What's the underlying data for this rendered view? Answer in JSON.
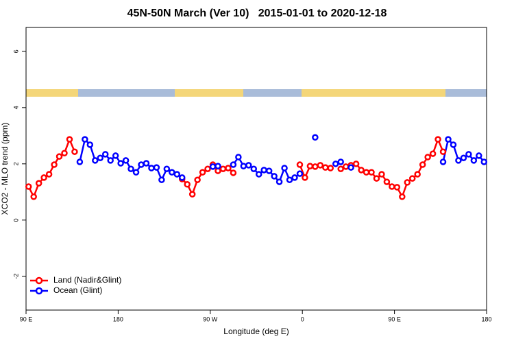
{
  "chart_data": {
    "type": "line",
    "title": "45N-50N March (Ver 10)   2015-01-01 to 2020-12-18",
    "x_label": "Longitude (deg E)",
    "y_label": "XCO2 - MLO trend (ppm)",
    "xlim": [
      90,
      540
    ],
    "ylim": [
      -3.2,
      6.85
    ],
    "xticks": [
      {
        "value": 90,
        "label": "90 E"
      },
      180,
      {
        "value": 270,
        "label": "90 W"
      },
      {
        "value": 360,
        "label": "0"
      },
      {
        "value": 450,
        "label": "90 E"
      },
      {
        "value": 540,
        "label": "180"
      }
    ],
    "yticks": [
      -2,
      0,
      2,
      4,
      6
    ],
    "legend": "bottomleft",
    "x": [
      92.5,
      97.5,
      102.5,
      107.5,
      112.5,
      117.5,
      122.5,
      127.5,
      132.5,
      137.5,
      142.5,
      147.5,
      152.5,
      157.5,
      162.5,
      167.5,
      172.5,
      177.5,
      182.5,
      187.5,
      192.5,
      197.5,
      202.5,
      207.5,
      212.5,
      217.5,
      222.5,
      227.5,
      232.5,
      237.5,
      242.5,
      247.5,
      252.5,
      257.5,
      262.5,
      267.5,
      272.5,
      277.5,
      282.5,
      287.5,
      292.5,
      297.5,
      302.5,
      307.5,
      312.5,
      317.5,
      322.5,
      327.5,
      332.5,
      337.5,
      342.5,
      347.5,
      352.5,
      357.5,
      362.5,
      367.5,
      372.5,
      377.5,
      382.5,
      387.5,
      392.5,
      397.5,
      402.5,
      407.5,
      412.5,
      417.5,
      422.5,
      427.5,
      432.5,
      437.5,
      442.5,
      447.5,
      452.5,
      457.5,
      462.5,
      467.5,
      472.5,
      477.5,
      482.5,
      487.5,
      492.5,
      497.5,
      502.5,
      507.5,
      512.5,
      517.5,
      522.5,
      527.5,
      532.5,
      537.5
    ],
    "series": [
      {
        "name": "Land (Nadir&Glint)",
        "color": "#ff0000",
        "values": [
          1.19,
          0.83,
          1.31,
          1.51,
          1.63,
          1.97,
          2.26,
          2.38,
          2.87,
          2.43,
          null,
          null,
          null,
          null,
          null,
          null,
          null,
          null,
          null,
          null,
          null,
          null,
          null,
          null,
          null,
          null,
          null,
          null,
          null,
          null,
          1.46,
          1.27,
          0.92,
          1.43,
          1.7,
          1.82,
          1.97,
          1.75,
          1.82,
          1.85,
          1.68,
          null,
          null,
          null,
          null,
          null,
          null,
          null,
          null,
          null,
          null,
          null,
          null,
          1.97,
          1.51,
          1.92,
          1.9,
          1.95,
          1.87,
          1.85,
          null,
          1.82,
          1.9,
          1.95,
          2.0,
          1.78,
          1.7,
          1.7,
          1.48,
          1.63,
          1.36,
          1.19,
          1.17,
          0.83,
          1.34,
          1.48,
          1.63,
          1.97,
          2.24,
          2.36,
          2.87,
          2.43,
          null,
          null,
          null,
          null,
          null,
          null,
          null,
          null
        ]
      },
      {
        "name": "Ocean (Glint)",
        "color": "#0000ff",
        "values": [
          null,
          null,
          null,
          null,
          null,
          null,
          null,
          null,
          null,
          null,
          2.07,
          2.87,
          2.68,
          2.12,
          2.21,
          2.34,
          2.12,
          2.29,
          2.02,
          2.12,
          1.82,
          1.7,
          1.97,
          2.02,
          1.85,
          1.87,
          1.43,
          1.82,
          1.7,
          1.63,
          1.51,
          null,
          null,
          null,
          null,
          null,
          1.9,
          1.92,
          null,
          null,
          1.97,
          2.24,
          1.92,
          1.95,
          1.82,
          1.63,
          1.78,
          1.75,
          1.56,
          1.36,
          1.85,
          1.43,
          1.51,
          1.65,
          null,
          null,
          2.94,
          null,
          null,
          null,
          2.0,
          2.07,
          null,
          1.87,
          null,
          null,
          null,
          null,
          null,
          null,
          null,
          null,
          null,
          null,
          null,
          null,
          null,
          null,
          null,
          null,
          null,
          2.07,
          2.87,
          2.68,
          2.12,
          2.21,
          2.34,
          2.12,
          2.29,
          2.07
        ]
      }
    ]
  }
}
